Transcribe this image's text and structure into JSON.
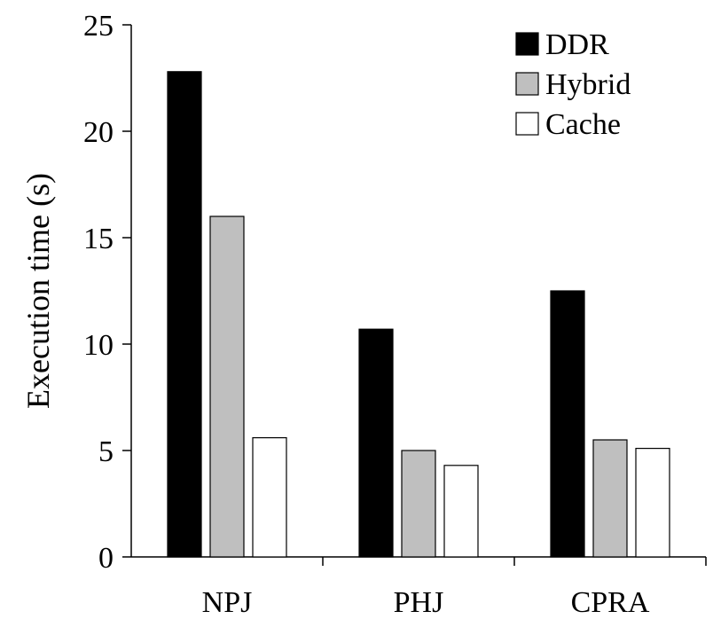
{
  "chart_data": {
    "type": "bar",
    "title": "",
    "xlabel": "",
    "ylabel": "Execution time (s)",
    "ylim": [
      0,
      25
    ],
    "yticks": [
      "0",
      "5",
      "10",
      "15",
      "20",
      "25"
    ],
    "ytick_values": [
      0,
      5,
      10,
      15,
      20,
      25
    ],
    "grid": false,
    "legend_position": "top-right",
    "categories": [
      "NPJ",
      "PHJ",
      "CPRA"
    ],
    "series": [
      {
        "name": "DDR",
        "color": "#000000",
        "values": [
          22.8,
          10.7,
          12.5
        ]
      },
      {
        "name": "Hybrid",
        "color": "#bfbfbf",
        "values": [
          16.0,
          5.0,
          5.5
        ]
      },
      {
        "name": "Cache",
        "color": "#ffffff",
        "values": [
          5.6,
          4.3,
          5.1
        ]
      }
    ]
  }
}
